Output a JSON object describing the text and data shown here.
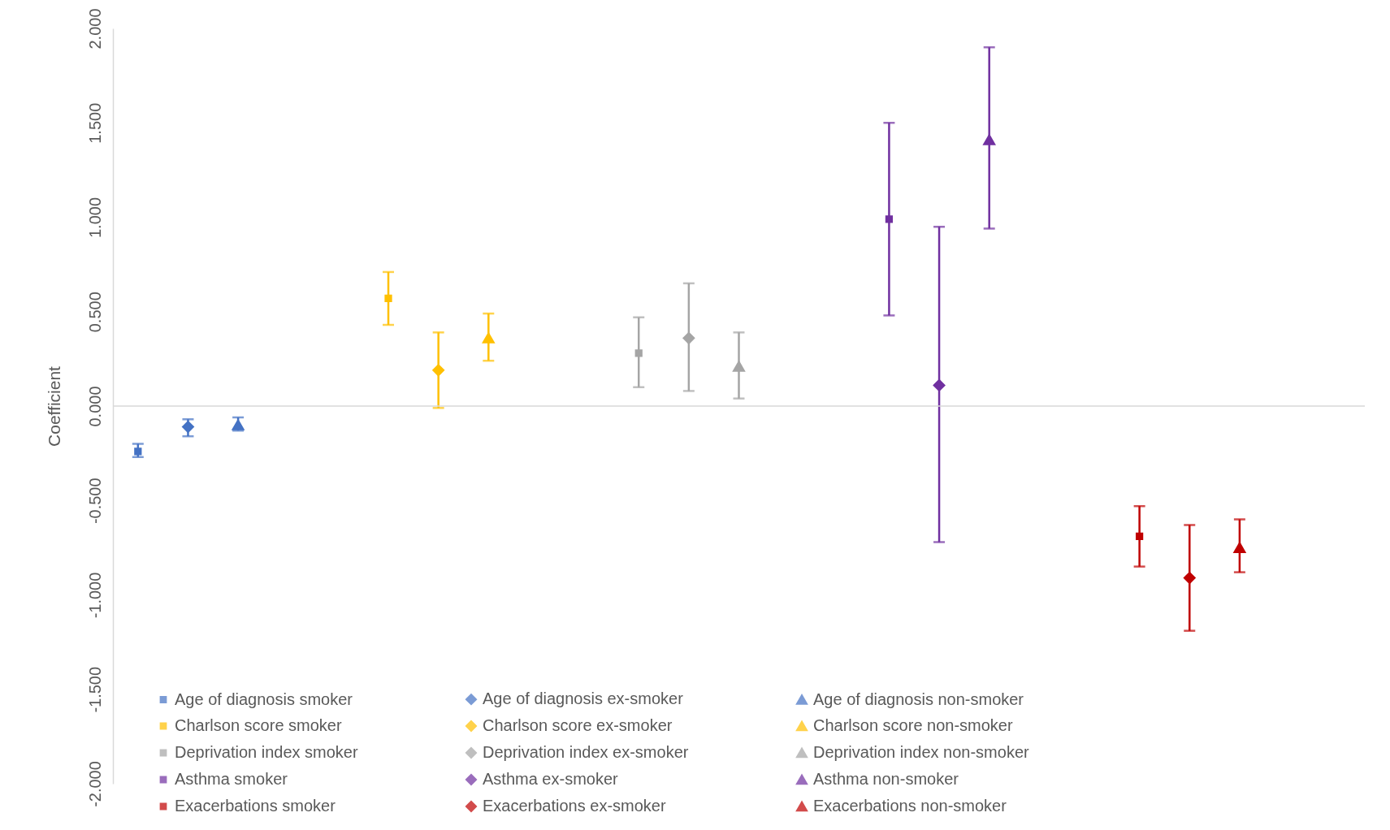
{
  "chart_data": {
    "type": "line",
    "ylabel": "Coefficient",
    "categories": [
      null,
      null,
      null,
      null,
      null,
      null,
      null,
      null,
      null,
      null,
      null,
      null,
      null,
      null,
      null,
      null,
      null,
      null,
      null,
      null,
      null,
      null,
      null,
      null,
      null
    ],
    "grid": false,
    "ylim": [
      -2,
      2
    ],
    "yticks": [
      {
        "value": -2,
        "label": "-2.000"
      },
      {
        "value": -1.5,
        "label": "-1.500"
      },
      {
        "value": -1,
        "label": "-1.000"
      },
      {
        "value": -0.5,
        "label": "-0.500"
      },
      {
        "value": 0,
        "label": "0.000"
      },
      {
        "value": 0.5,
        "label": "0.500"
      },
      {
        "value": 1,
        "label": "1.000"
      },
      {
        "value": 1.5,
        "label": "1.500"
      },
      {
        "value": 2,
        "label": "2.000"
      }
    ],
    "legend": "bottom",
    "ref_lines": [
      {
        "axis": "y",
        "value": 0,
        "color": "#d9d9d9"
      }
    ],
    "series": [
      {
        "name": "Age of diagnosis smoker",
        "color": "#4472c4",
        "marker": "square",
        "values": [
          -0.24,
          null,
          null,
          null,
          null,
          null,
          null,
          null,
          null,
          null,
          null,
          null,
          null,
          null,
          null,
          null,
          null,
          null,
          null,
          null,
          null,
          null,
          null,
          null,
          null
        ],
        "errors": [
          [
            -0.27,
            -0.2
          ],
          null,
          null,
          null,
          null,
          null,
          null,
          null,
          null,
          null,
          null,
          null,
          null,
          null,
          null,
          null,
          null,
          null,
          null,
          null,
          null,
          null,
          null,
          null,
          null
        ]
      },
      {
        "name": "Age of diagnosis ex-smoker",
        "color": "#4472c4",
        "marker": "diamond",
        "values": [
          null,
          -0.11,
          null,
          null,
          null,
          null,
          null,
          null,
          null,
          null,
          null,
          null,
          null,
          null,
          null,
          null,
          null,
          null,
          null,
          null,
          null,
          null,
          null,
          null,
          null
        ],
        "errors": [
          null,
          [
            -0.16,
            -0.07
          ],
          null,
          null,
          null,
          null,
          null,
          null,
          null,
          null,
          null,
          null,
          null,
          null,
          null,
          null,
          null,
          null,
          null,
          null,
          null,
          null,
          null,
          null,
          null
        ]
      },
      {
        "name": "Age of diagnosis non-smoker",
        "color": "#4472c4",
        "marker": "triangle",
        "values": [
          null,
          null,
          -0.1,
          null,
          null,
          null,
          null,
          null,
          null,
          null,
          null,
          null,
          null,
          null,
          null,
          null,
          null,
          null,
          null,
          null,
          null,
          null,
          null,
          null,
          null
        ],
        "errors": [
          null,
          null,
          [
            -0.13,
            -0.06
          ],
          null,
          null,
          null,
          null,
          null,
          null,
          null,
          null,
          null,
          null,
          null,
          null,
          null,
          null,
          null,
          null,
          null,
          null,
          null,
          null,
          null,
          null
        ]
      },
      {
        "name": "Charlson score smoker",
        "color": "#ffc000",
        "marker": "square",
        "values": [
          null,
          null,
          null,
          null,
          null,
          0.57,
          null,
          null,
          null,
          null,
          null,
          null,
          null,
          null,
          null,
          null,
          null,
          null,
          null,
          null,
          null,
          null,
          null,
          null,
          null
        ],
        "errors": [
          null,
          null,
          null,
          null,
          null,
          [
            0.43,
            0.71
          ],
          null,
          null,
          null,
          null,
          null,
          null,
          null,
          null,
          null,
          null,
          null,
          null,
          null,
          null,
          null,
          null,
          null,
          null,
          null
        ]
      },
      {
        "name": "Charlson score ex-smoker",
        "color": "#ffc000",
        "marker": "diamond",
        "values": [
          null,
          null,
          null,
          null,
          null,
          null,
          0.19,
          null,
          null,
          null,
          null,
          null,
          null,
          null,
          null,
          null,
          null,
          null,
          null,
          null,
          null,
          null,
          null,
          null,
          null
        ],
        "errors": [
          null,
          null,
          null,
          null,
          null,
          null,
          [
            -0.01,
            0.39
          ],
          null,
          null,
          null,
          null,
          null,
          null,
          null,
          null,
          null,
          null,
          null,
          null,
          null,
          null,
          null,
          null,
          null,
          null
        ]
      },
      {
        "name": "Charlson score non-smoker",
        "color": "#ffc000",
        "marker": "triangle",
        "values": [
          null,
          null,
          null,
          null,
          null,
          null,
          null,
          0.36,
          null,
          null,
          null,
          null,
          null,
          null,
          null,
          null,
          null,
          null,
          null,
          null,
          null,
          null,
          null,
          null,
          null
        ],
        "errors": [
          null,
          null,
          null,
          null,
          null,
          null,
          null,
          [
            0.24,
            0.49
          ],
          null,
          null,
          null,
          null,
          null,
          null,
          null,
          null,
          null,
          null,
          null,
          null,
          null,
          null,
          null,
          null,
          null
        ]
      },
      {
        "name": "Deprivation index smoker",
        "color": "#a5a5a5",
        "marker": "square",
        "values": [
          null,
          null,
          null,
          null,
          null,
          null,
          null,
          null,
          null,
          null,
          0.28,
          null,
          null,
          null,
          null,
          null,
          null,
          null,
          null,
          null,
          null,
          null,
          null,
          null,
          null
        ],
        "errors": [
          null,
          null,
          null,
          null,
          null,
          null,
          null,
          null,
          null,
          null,
          [
            0.1,
            0.47
          ],
          null,
          null,
          null,
          null,
          null,
          null,
          null,
          null,
          null,
          null,
          null,
          null,
          null,
          null
        ]
      },
      {
        "name": "Deprivation index ex-smoker",
        "color": "#a5a5a5",
        "marker": "diamond",
        "values": [
          null,
          null,
          null,
          null,
          null,
          null,
          null,
          null,
          null,
          null,
          null,
          0.36,
          null,
          null,
          null,
          null,
          null,
          null,
          null,
          null,
          null,
          null,
          null,
          null,
          null
        ],
        "errors": [
          null,
          null,
          null,
          null,
          null,
          null,
          null,
          null,
          null,
          null,
          null,
          [
            0.08,
            0.65
          ],
          null,
          null,
          null,
          null,
          null,
          null,
          null,
          null,
          null,
          null,
          null,
          null,
          null
        ]
      },
      {
        "name": "Deprivation index non-smoker",
        "color": "#a5a5a5",
        "marker": "triangle",
        "values": [
          null,
          null,
          null,
          null,
          null,
          null,
          null,
          null,
          null,
          null,
          null,
          null,
          0.21,
          null,
          null,
          null,
          null,
          null,
          null,
          null,
          null,
          null,
          null,
          null,
          null
        ],
        "errors": [
          null,
          null,
          null,
          null,
          null,
          null,
          null,
          null,
          null,
          null,
          null,
          null,
          [
            0.04,
            0.39
          ],
          null,
          null,
          null,
          null,
          null,
          null,
          null,
          null,
          null,
          null,
          null,
          null
        ]
      },
      {
        "name": "Asthma smoker",
        "color": "#7030a0",
        "marker": "square",
        "values": [
          null,
          null,
          null,
          null,
          null,
          null,
          null,
          null,
          null,
          null,
          null,
          null,
          null,
          null,
          null,
          0.99,
          null,
          null,
          null,
          null,
          null,
          null,
          null,
          null,
          null
        ],
        "errors": [
          null,
          null,
          null,
          null,
          null,
          null,
          null,
          null,
          null,
          null,
          null,
          null,
          null,
          null,
          null,
          [
            0.48,
            1.5
          ],
          null,
          null,
          null,
          null,
          null,
          null,
          null,
          null,
          null
        ]
      },
      {
        "name": "Asthma ex-smoker",
        "color": "#7030a0",
        "marker": "diamond",
        "values": [
          null,
          null,
          null,
          null,
          null,
          null,
          null,
          null,
          null,
          null,
          null,
          null,
          null,
          null,
          null,
          null,
          0.11,
          null,
          null,
          null,
          null,
          null,
          null,
          null,
          null
        ],
        "errors": [
          null,
          null,
          null,
          null,
          null,
          null,
          null,
          null,
          null,
          null,
          null,
          null,
          null,
          null,
          null,
          null,
          [
            -0.72,
            0.95
          ],
          null,
          null,
          null,
          null,
          null,
          null,
          null,
          null
        ]
      },
      {
        "name": "Asthma non-smoker",
        "color": "#7030a0",
        "marker": "triangle",
        "values": [
          null,
          null,
          null,
          null,
          null,
          null,
          null,
          null,
          null,
          null,
          null,
          null,
          null,
          null,
          null,
          null,
          null,
          1.41,
          null,
          null,
          null,
          null,
          null,
          null,
          null
        ],
        "errors": [
          null,
          null,
          null,
          null,
          null,
          null,
          null,
          null,
          null,
          null,
          null,
          null,
          null,
          null,
          null,
          null,
          null,
          [
            0.94,
            1.9
          ],
          null,
          null,
          null,
          null,
          null,
          null,
          null
        ]
      },
      {
        "name": "Exacerbations smoker",
        "color": "#c00000",
        "marker": "square",
        "values": [
          null,
          null,
          null,
          null,
          null,
          null,
          null,
          null,
          null,
          null,
          null,
          null,
          null,
          null,
          null,
          null,
          null,
          null,
          null,
          null,
          -0.69,
          null,
          null,
          null,
          null
        ],
        "errors": [
          null,
          null,
          null,
          null,
          null,
          null,
          null,
          null,
          null,
          null,
          null,
          null,
          null,
          null,
          null,
          null,
          null,
          null,
          null,
          null,
          [
            -0.85,
            -0.53
          ],
          null,
          null,
          null,
          null
        ]
      },
      {
        "name": "Exacerbations ex-smoker",
        "color": "#c00000",
        "marker": "diamond",
        "values": [
          null,
          null,
          null,
          null,
          null,
          null,
          null,
          null,
          null,
          null,
          null,
          null,
          null,
          null,
          null,
          null,
          null,
          null,
          null,
          null,
          null,
          -0.91,
          null,
          null,
          null
        ],
        "errors": [
          null,
          null,
          null,
          null,
          null,
          null,
          null,
          null,
          null,
          null,
          null,
          null,
          null,
          null,
          null,
          null,
          null,
          null,
          null,
          null,
          null,
          [
            -1.19,
            -0.63
          ],
          null,
          null,
          null
        ]
      },
      {
        "name": "Exacerbations non-smoker",
        "color": "#c00000",
        "marker": "triangle",
        "values": [
          null,
          null,
          null,
          null,
          null,
          null,
          null,
          null,
          null,
          null,
          null,
          null,
          null,
          null,
          null,
          null,
          null,
          null,
          null,
          null,
          null,
          null,
          -0.75,
          null,
          null
        ],
        "errors": [
          null,
          null,
          null,
          null,
          null,
          null,
          null,
          null,
          null,
          null,
          null,
          null,
          null,
          null,
          null,
          null,
          null,
          null,
          null,
          null,
          null,
          null,
          [
            -0.88,
            -0.6
          ],
          null,
          null
        ]
      }
    ]
  }
}
